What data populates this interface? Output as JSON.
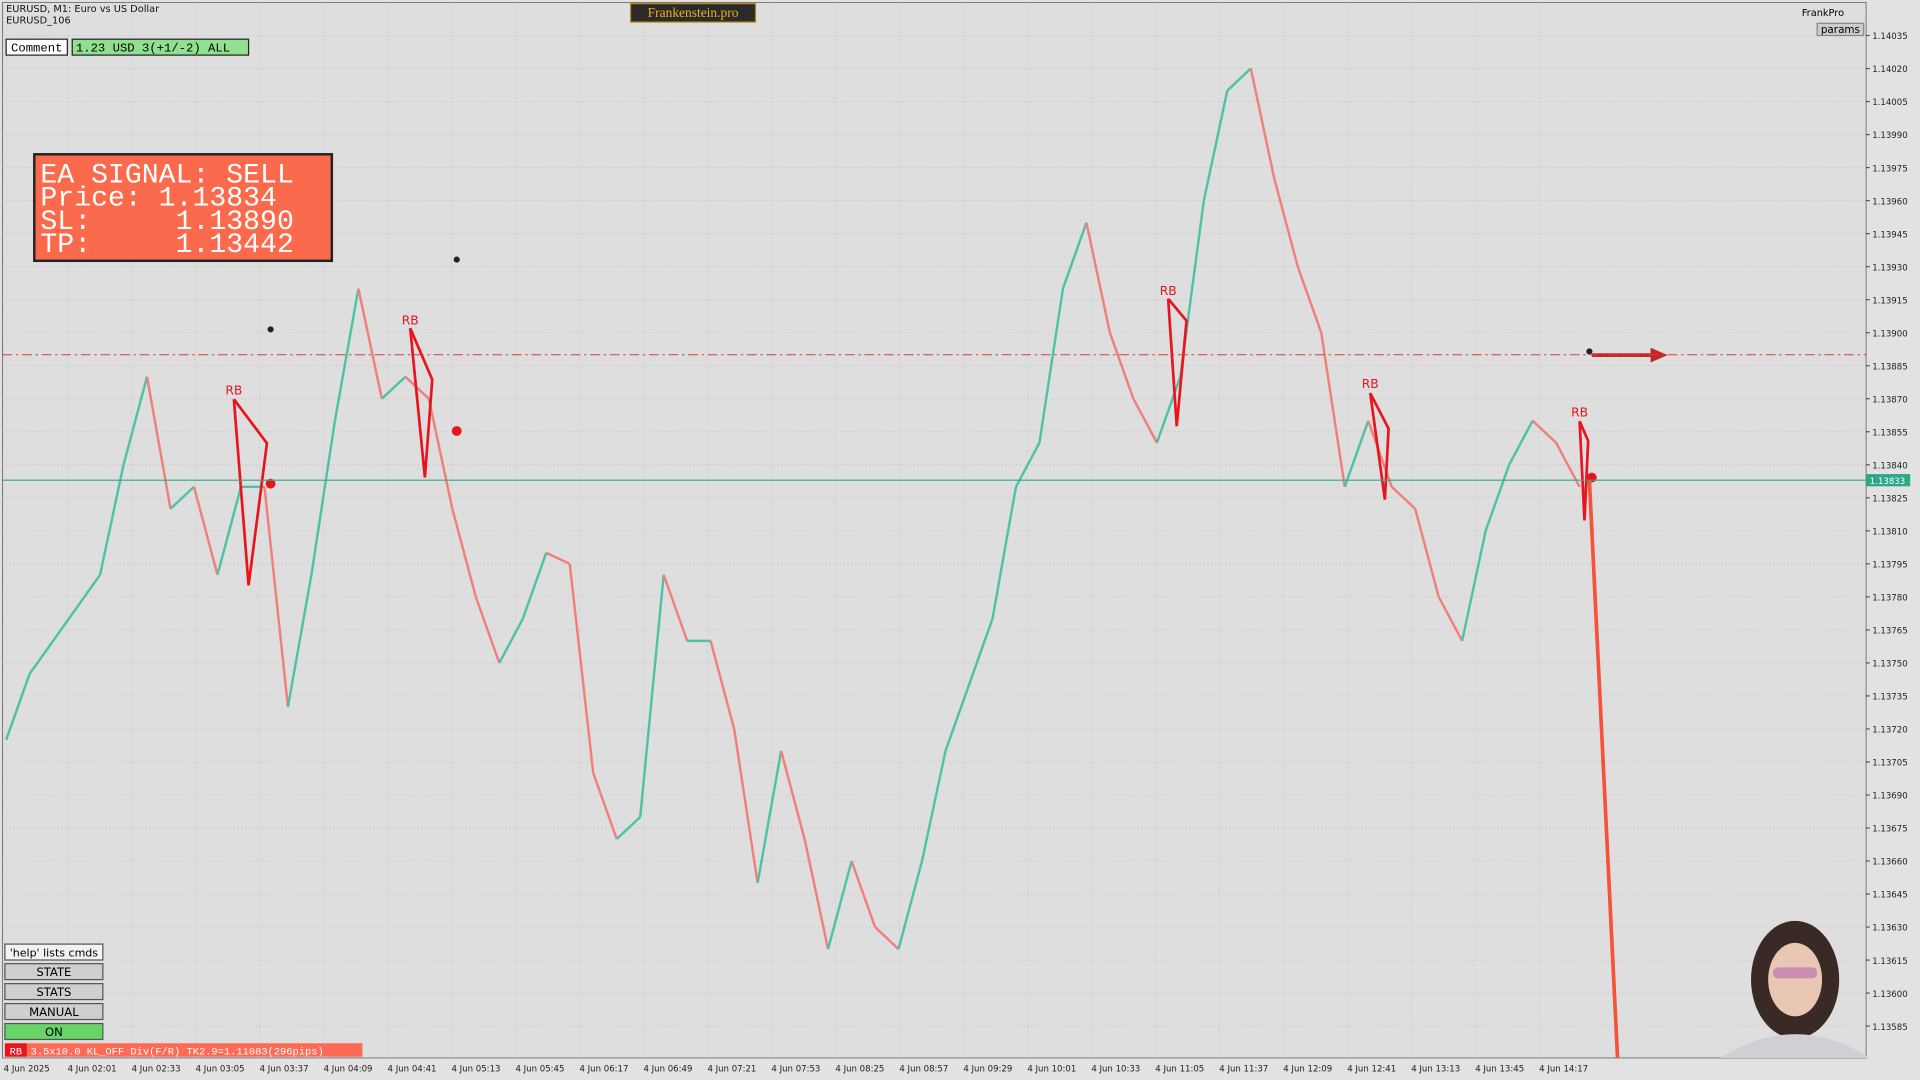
{
  "header": {
    "symbol": "EURUSD, M1:  Euro vs US Dollar",
    "account": "EURUSD_106",
    "brand": "Frankenstein.pro",
    "comment_label": "Comment",
    "comment_value": "1.23 USD 3(+1/-2) ALL",
    "frankpro": "FrankPro",
    "params": "params"
  },
  "signal": {
    "title": "EA SIGNAL: SELL",
    "lines": [
      "Price: 1.13834",
      "SL:     1.13890",
      "TP:     1.13442"
    ]
  },
  "chart": {
    "ylim": [
      1.13585,
      1.14035
    ],
    "yticks": [
      1.14035,
      {
        "value": 1.1402,
        "label": "1.14020"
      },
      1.14005,
      {
        "value": 1.1399,
        "label": "1.13990"
      },
      1.13975,
      {
        "value": 1.1396,
        "label": "1.13960"
      },
      1.13945,
      {
        "value": 1.1393,
        "label": "1.13930"
      },
      1.13915,
      {
        "value": 1.139,
        "label": "1.13900"
      },
      1.13885,
      {
        "value": 1.1387,
        "label": "1.13870"
      },
      1.13855,
      {
        "value": 1.1384,
        "label": "1.13840"
      },
      1.13825,
      {
        "value": 1.1381,
        "label": "1.13810"
      },
      1.13795,
      {
        "value": 1.1378,
        "label": "1.13780"
      },
      1.13765,
      {
        "value": 1.1375,
        "label": "1.13750"
      },
      1.13735,
      {
        "value": 1.1372,
        "label": "1.13720"
      },
      1.13705,
      {
        "value": 1.1369,
        "label": "1.13690"
      },
      1.13675,
      {
        "value": 1.1366,
        "label": "1.13660"
      },
      1.13645,
      {
        "value": 1.1363,
        "label": "1.13630"
      },
      1.13615,
      {
        "value": 1.136,
        "label": "1.13600"
      },
      1.13585
    ],
    "times": [
      "4 Jun 2025",
      "4 Jun 02:01",
      "4 Jun 02:33",
      "4 Jun 03:05",
      "4 Jun 03:37",
      "4 Jun 04:09",
      "4 Jun 04:41",
      "4 Jun 05:13",
      "4 Jun 05:45",
      "4 Jun 06:17",
      "4 Jun 06:49",
      "4 Jun 07:21",
      "4 Jun 07:53",
      "4 Jun 08:25",
      "4 Jun 08:57",
      "4 Jun 09:29",
      "4 Jun 10:01",
      "4 Jun 10:33",
      "4 Jun 11:05",
      "4 Jun 11:37",
      "4 Jun 12:09",
      "4 Jun 12:41",
      "4 Jun 13:13",
      "4 Jun 13:45",
      "4 Jun 14:17"
    ],
    "current_price": 1.13833,
    "sl_level": 1.1389,
    "closes": [
      1.13715,
      1.13745,
      1.1376,
      1.13775,
      1.1379,
      1.1384,
      1.1388,
      1.1382,
      1.1383,
      1.1379,
      1.1383,
      1.1383,
      1.1373,
      1.1379,
      1.1386,
      1.1392,
      1.1387,
      1.1388,
      1.1387,
      1.1382,
      1.1378,
      1.1375,
      1.1377,
      1.138,
      1.13795,
      1.137,
      1.1367,
      1.1368,
      1.1379,
      1.1376,
      1.1376,
      1.1372,
      1.1365,
      1.1371,
      1.1367,
      1.1362,
      1.1366,
      1.1363,
      1.1362,
      1.1366,
      1.1371,
      1.1374,
      1.1377,
      1.1383,
      1.1385,
      1.1392,
      1.1395,
      1.139,
      1.1387,
      1.1385,
      1.1388,
      1.1396,
      1.1401,
      1.1402,
      1.1397,
      1.1393,
      1.139,
      1.1383,
      1.1386,
      1.1383,
      1.1382,
      1.1378,
      1.1376,
      1.1381,
      1.1384,
      1.1386,
      1.1385,
      1.1383
    ],
    "pattern_label": "RB"
  },
  "panel": {
    "help": "'help' lists cmds",
    "buttons": [
      "STATE",
      "STATS",
      "MANUAL",
      "ON"
    ],
    "status_tag": "RB",
    "status": "3.5x10.0 KL_OFF Div(F/R) TK2.9=1.11083(296pips)"
  }
}
